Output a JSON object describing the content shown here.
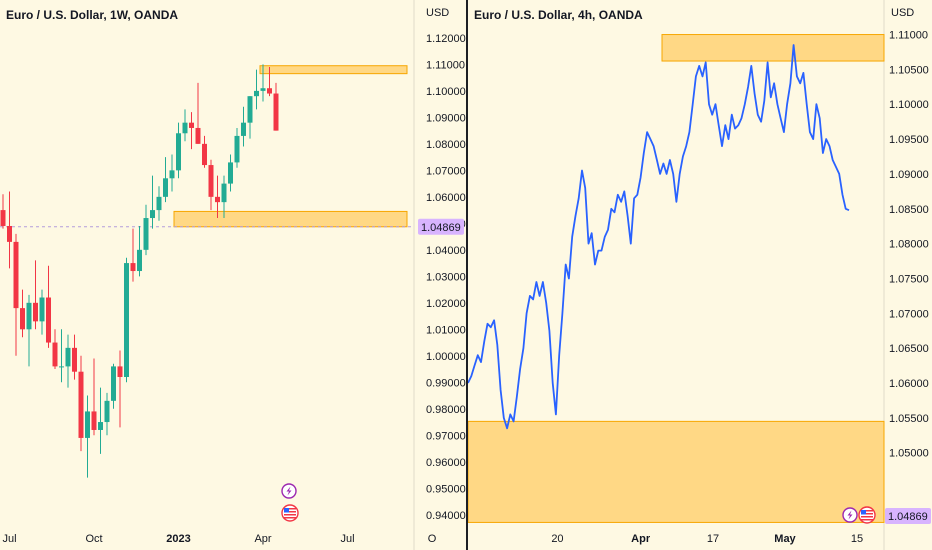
{
  "colors": {
    "up": "#22ab94",
    "down": "#f23645",
    "line": "#2962ff",
    "zone": "#ffcc66",
    "zone_border": "#f7a600",
    "price_tag": "#d8b4fe",
    "bg": "#fef9e3"
  },
  "left_chart": {
    "title": "Euro / U.S. Dollar, 1W, OANDA",
    "currency": "USD",
    "price_label": "1.04869",
    "x_ticks": [
      {
        "label": "Jul",
        "bold": false,
        "idx": 1
      },
      {
        "label": "Oct",
        "bold": false,
        "idx": 14
      },
      {
        "label": "2023",
        "bold": true,
        "idx": 27
      },
      {
        "label": "Apr",
        "bold": false,
        "idx": 40
      },
      {
        "label": "Jul",
        "bold": false,
        "idx": 53
      },
      {
        "label": "O",
        "bold": false,
        "idx": 66
      }
    ],
    "icons": [
      "lightning-icon",
      "us-flag-icon"
    ]
  },
  "right_chart": {
    "title": "Euro / U.S. Dollar, 4h, OANDA",
    "currency": "USD",
    "price_label": "1.04869",
    "x_ticks": [
      {
        "label": "20",
        "bold": false,
        "pos": 0.215
      },
      {
        "label": "Apr",
        "bold": true,
        "pos": 0.415
      },
      {
        "label": "17",
        "bold": false,
        "pos": 0.589
      },
      {
        "label": "May",
        "bold": true,
        "pos": 0.762
      },
      {
        "label": "15",
        "bold": false,
        "pos": 0.935
      }
    ],
    "icons": [
      "lightning-icon",
      "us-flag-icon"
    ]
  },
  "chart_data": [
    {
      "type": "candlestick",
      "title": "Euro / U.S. Dollar, 1W, OANDA",
      "ylabel": "USD",
      "ylim": [
        0.935,
        1.126
      ],
      "y_ticks": [
        0.94,
        0.95,
        0.96,
        0.97,
        0.98,
        0.99,
        1.0,
        1.01,
        1.02,
        1.03,
        1.04,
        1.05,
        1.06,
        1.07,
        1.08,
        1.09,
        1.1,
        1.11,
        1.12
      ],
      "last_price": 1.04869,
      "zones": [
        {
          "from": 1.1065,
          "to": 1.1095
        },
        {
          "from": 1.0487,
          "to": 1.0545
        }
      ],
      "candles": [
        {
          "o": 1.055,
          "h": 1.061,
          "l": 1.048,
          "c": 1.049
        },
        {
          "o": 1.049,
          "h": 1.062,
          "l": 1.033,
          "c": 1.043
        },
        {
          "o": 1.043,
          "h": 1.046,
          "l": 1.0,
          "c": 1.018
        },
        {
          "o": 1.018,
          "h": 1.025,
          "l": 1.007,
          "c": 1.01
        },
        {
          "o": 1.01,
          "h": 1.023,
          "l": 0.996,
          "c": 1.02
        },
        {
          "o": 1.02,
          "h": 1.036,
          "l": 1.01,
          "c": 1.013
        },
        {
          "o": 1.013,
          "h": 1.025,
          "l": 1.008,
          "c": 1.022
        },
        {
          "o": 1.022,
          "h": 1.034,
          "l": 1.003,
          "c": 1.005
        },
        {
          "o": 1.005,
          "h": 1.01,
          "l": 0.995,
          "c": 0.996
        },
        {
          "o": 0.996,
          "h": 1.01,
          "l": 0.99,
          "c": 0.996
        },
        {
          "o": 0.996,
          "h": 1.008,
          "l": 0.988,
          "c": 1.003
        },
        {
          "o": 1.003,
          "h": 1.008,
          "l": 0.991,
          "c": 0.994
        },
        {
          "o": 0.994,
          "h": 1.0,
          "l": 0.964,
          "c": 0.969
        },
        {
          "o": 0.969,
          "h": 0.985,
          "l": 0.954,
          "c": 0.979
        },
        {
          "o": 0.979,
          "h": 0.999,
          "l": 0.97,
          "c": 0.972
        },
        {
          "o": 0.972,
          "h": 0.988,
          "l": 0.963,
          "c": 0.975
        },
        {
          "o": 0.975,
          "h": 0.986,
          "l": 0.97,
          "c": 0.983
        },
        {
          "o": 0.983,
          "h": 0.997,
          "l": 0.98,
          "c": 0.996
        },
        {
          "o": 0.996,
          "h": 1.002,
          "l": 0.973,
          "c": 0.992
        },
        {
          "o": 0.992,
          "h": 1.037,
          "l": 0.99,
          "c": 1.035
        },
        {
          "o": 1.035,
          "h": 1.048,
          "l": 1.028,
          "c": 1.032
        },
        {
          "o": 1.032,
          "h": 1.049,
          "l": 1.03,
          "c": 1.04
        },
        {
          "o": 1.04,
          "h": 1.057,
          "l": 1.038,
          "c": 1.052
        },
        {
          "o": 1.052,
          "h": 1.068,
          "l": 1.048,
          "c": 1.055
        },
        {
          "o": 1.055,
          "h": 1.064,
          "l": 1.051,
          "c": 1.06
        },
        {
          "o": 1.06,
          "h": 1.075,
          "l": 1.058,
          "c": 1.067
        },
        {
          "o": 1.067,
          "h": 1.076,
          "l": 1.062,
          "c": 1.07
        },
        {
          "o": 1.07,
          "h": 1.088,
          "l": 1.067,
          "c": 1.084
        },
        {
          "o": 1.084,
          "h": 1.093,
          "l": 1.081,
          "c": 1.088
        },
        {
          "o": 1.088,
          "h": 1.092,
          "l": 1.078,
          "c": 1.086
        },
        {
          "o": 1.086,
          "h": 1.103,
          "l": 1.08,
          "c": 1.08
        },
        {
          "o": 1.08,
          "h": 1.083,
          "l": 1.071,
          "c": 1.072
        },
        {
          "o": 1.072,
          "h": 1.074,
          "l": 1.055,
          "c": 1.06
        },
        {
          "o": 1.06,
          "h": 1.068,
          "l": 1.052,
          "c": 1.058
        },
        {
          "o": 1.058,
          "h": 1.068,
          "l": 1.052,
          "c": 1.065
        },
        {
          "o": 1.065,
          "h": 1.076,
          "l": 1.062,
          "c": 1.073
        },
        {
          "o": 1.073,
          "h": 1.086,
          "l": 1.071,
          "c": 1.083
        },
        {
          "o": 1.083,
          "h": 1.094,
          "l": 1.079,
          "c": 1.088
        },
        {
          "o": 1.088,
          "h": 1.098,
          "l": 1.082,
          "c": 1.098
        },
        {
          "o": 1.098,
          "h": 1.108,
          "l": 1.093,
          "c": 1.1
        },
        {
          "o": 1.1,
          "h": 1.11,
          "l": 1.096,
          "c": 1.101
        },
        {
          "o": 1.101,
          "h": 1.109,
          "l": 1.098,
          "c": 1.099
        },
        {
          "o": 1.099,
          "h": 1.103,
          "l": 1.085,
          "c": 1.085
        }
      ]
    },
    {
      "type": "line",
      "title": "Euro / U.S. Dollar, 4h, OANDA",
      "ylabel": "USD",
      "ylim": [
        1.0392,
        1.1118
      ],
      "y_ticks": [
        1.05,
        1.055,
        1.06,
        1.065,
        1.07,
        1.075,
        1.08,
        1.085,
        1.09,
        1.095,
        1.1,
        1.105,
        1.11
      ],
      "last_price": 1.04869,
      "zones": [
        {
          "from": 1.1062,
          "to": 1.11
        },
        {
          "from": 1.04,
          "to": 1.0545
        }
      ],
      "series": [
        {
          "values": [
            1.06,
            1.061,
            1.0625,
            1.064,
            1.063,
            1.066,
            1.0685,
            1.068,
            1.069,
            1.0655,
            1.059,
            1.055,
            1.0535,
            1.0555,
            1.0545,
            1.058,
            1.062,
            1.065,
            1.07,
            1.0725,
            1.072,
            1.0745,
            1.0725,
            1.0745,
            1.0715,
            1.0675,
            1.06,
            1.0555,
            1.064,
            1.07,
            1.077,
            1.075,
            1.081,
            1.084,
            1.0865,
            1.0905,
            1.088,
            1.08,
            1.0815,
            1.077,
            1.079,
            1.079,
            1.081,
            1.082,
            1.085,
            1.0845,
            1.087,
            1.086,
            1.0875,
            1.084,
            1.08,
            1.0865,
            1.087,
            1.0895,
            1.093,
            1.096,
            1.095,
            1.094,
            1.092,
            1.09,
            1.0915,
            1.09,
            1.092,
            1.09,
            1.086,
            1.09,
            1.0925,
            1.094,
            1.096,
            1.1,
            1.104,
            1.1055,
            1.104,
            1.106,
            1.1,
            1.0985,
            1.1,
            1.097,
            1.094,
            1.097,
            1.095,
            1.0985,
            1.0965,
            1.097,
            1.098,
            1.1,
            1.1025,
            1.1055,
            1.1015,
            1.0985,
            1.0975,
            1.1005,
            1.106,
            1.101,
            1.103,
            1.1,
            1.098,
            1.096,
            1.1,
            1.103,
            1.1085,
            1.104,
            1.103,
            1.1045,
            1.1,
            1.096,
            1.095,
            1.1,
            1.098,
            1.093,
            1.095,
            1.094,
            1.092,
            1.091,
            1.09,
            1.087,
            1.085,
            1.0848
          ]
        }
      ]
    }
  ]
}
